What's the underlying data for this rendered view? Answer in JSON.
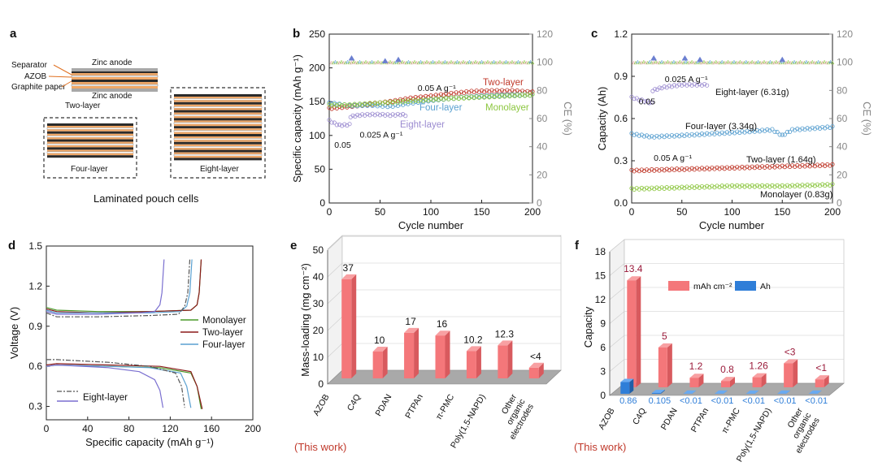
{
  "panels": {
    "a": {
      "letter": "a",
      "callouts": [
        "Separator",
        "AZOB",
        "Graphite paper"
      ],
      "top_label": "Zinc anode",
      "bottom_label": "Zinc anode",
      "two_layer": "Two-layer",
      "four_layer": "Four-layer",
      "eight_layer": "Eight-layer",
      "caption": "Laminated pouch cells"
    }
  },
  "chart_data": [
    {
      "id": "b",
      "letter": "b",
      "type": "line",
      "xlabel": "Cycle number",
      "ylabel": "Specific capacity (mAh g⁻¹)",
      "y2label": "CE (%)",
      "xlim": [
        0,
        200
      ],
      "ylim": [
        0,
        250
      ],
      "y2lim": [
        0,
        120
      ],
      "xticks": [
        0,
        50,
        100,
        150,
        200
      ],
      "yticks": [
        0,
        50,
        100,
        150,
        200,
        250
      ],
      "y2ticks": [
        0,
        20,
        40,
        60,
        80,
        100,
        120
      ],
      "series": [
        {
          "name": "Two-layer",
          "color": "#c0392b",
          "points": [
            [
              0,
              140
            ],
            [
              20,
              143
            ],
            [
              40,
              146
            ],
            [
              60,
              150
            ],
            [
              80,
              155
            ],
            [
              100,
              158
            ],
            [
              120,
              162
            ],
            [
              140,
              165
            ],
            [
              160,
              166
            ],
            [
              180,
              166
            ],
            [
              200,
              164
            ]
          ]
        },
        {
          "name": "Four-layer",
          "color": "#5aa0d0",
          "points": [
            [
              0,
              148
            ],
            [
              10,
              146
            ],
            [
              20,
              144
            ],
            [
              40,
              145
            ],
            [
              60,
              143
            ],
            [
              80,
              148
            ],
            [
              100,
              152
            ],
            [
              120,
              155
            ],
            [
              150,
              158
            ],
            [
              180,
              160
            ],
            [
              200,
              160
            ]
          ]
        },
        {
          "name": "Monolayer",
          "color": "#8cc63f",
          "points": [
            [
              0,
              145
            ],
            [
              20,
              145
            ],
            [
              40,
              147
            ],
            [
              60,
              149
            ],
            [
              80,
              151
            ],
            [
              100,
              153
            ],
            [
              120,
              155
            ],
            [
              150,
              157
            ],
            [
              180,
              159
            ],
            [
              200,
              160
            ]
          ]
        },
        {
          "name": "Eight-layer",
          "color": "#9b8bd0",
          "points": [
            [
              0,
              122
            ],
            [
              5,
              118
            ],
            [
              10,
              115
            ],
            [
              20,
              116
            ],
            [
              21,
              128
            ],
            [
              30,
              130
            ],
            [
              40,
              131
            ],
            [
              50,
              131
            ],
            [
              60,
              130
            ],
            [
              70,
              131
            ],
            [
              75,
              130
            ]
          ]
        }
      ],
      "ce_series": [
        {
          "name": "CE",
          "color": "#6b7fd0",
          "value": 100,
          "spikes": [
            [
              22,
              103
            ],
            [
              55,
              101
            ],
            [
              68,
              102
            ]
          ]
        }
      ],
      "annotations": [
        {
          "text": "0.05 A g⁻¹",
          "x": 87,
          "y": 166
        },
        {
          "text": "0.025 A g⁻¹",
          "x": 30,
          "y": 97
        },
        {
          "text": "0.05",
          "x": 5,
          "y": 82
        }
      ],
      "legend_labels": [
        {
          "text": "Two-layer",
          "color": "#c0392b"
        },
        {
          "text": "Four-layer",
          "color": "#5aa0d0"
        },
        {
          "text": "Monolayer",
          "color": "#8cc63f"
        },
        {
          "text": "Eight-layer",
          "color": "#9b8bd0"
        }
      ]
    },
    {
      "id": "c",
      "letter": "c",
      "type": "line",
      "xlabel": "Cycle number",
      "ylabel": "Capacity (Ah)",
      "y2label": "CE (%)",
      "xlim": [
        0,
        200
      ],
      "ylim": [
        0,
        1.2
      ],
      "y2lim": [
        0,
        120
      ],
      "xticks": [
        0,
        50,
        100,
        150,
        200
      ],
      "yticks": [
        0.0,
        0.3,
        0.6,
        0.9,
        1.2
      ],
      "y2ticks": [
        0,
        20,
        40,
        60,
        80,
        100,
        120
      ],
      "series": [
        {
          "name": "Eight-layer (6.31g)",
          "color": "#9b8bd0",
          "points": [
            [
              0,
              0.75
            ],
            [
              10,
              0.73
            ],
            [
              20,
              0.71
            ],
            [
              21,
              0.8
            ],
            [
              30,
              0.82
            ],
            [
              40,
              0.83
            ],
            [
              50,
              0.84
            ],
            [
              60,
              0.84
            ],
            [
              75,
              0.84
            ]
          ]
        },
        {
          "name": "Four-layer (3.34g)",
          "color": "#5aa0d0",
          "points": [
            [
              0,
              0.49
            ],
            [
              20,
              0.47
            ],
            [
              50,
              0.48
            ],
            [
              100,
              0.5
            ],
            [
              140,
              0.52
            ],
            [
              150,
              0.48
            ],
            [
              160,
              0.52
            ],
            [
              200,
              0.54
            ]
          ]
        },
        {
          "name": "Two-layer (1.64g)",
          "color": "#c0392b",
          "points": [
            [
              0,
              0.23
            ],
            [
              50,
              0.24
            ],
            [
              100,
              0.25
            ],
            [
              150,
              0.26
            ],
            [
              200,
              0.27
            ]
          ]
        },
        {
          "name": "Monolayer (0.83g)",
          "color": "#8cc63f",
          "points": [
            [
              0,
              0.1
            ],
            [
              50,
              0.11
            ],
            [
              100,
              0.12
            ],
            [
              150,
              0.12
            ],
            [
              200,
              0.13
            ]
          ]
        }
      ],
      "ce_series": [
        {
          "name": "CE",
          "color": "#6b7fd0",
          "value": 100,
          "spikes": [
            [
              22,
              103
            ],
            [
              53,
              103
            ],
            [
              68,
              102
            ],
            [
              150,
              102
            ]
          ]
        }
      ],
      "annotations": [
        {
          "text": "0.025 A g⁻¹",
          "x": 33,
          "y": 0.86
        },
        {
          "text": "0.05",
          "x": 7,
          "y": 0.7
        },
        {
          "text": "0.05 A g⁻¹",
          "x": 22,
          "y": 0.3
        }
      ],
      "legend_labels": [
        {
          "text": "Eight-layer (6.31g)",
          "color": "#111111"
        },
        {
          "text": "Four-layer (3.34g)",
          "color": "#111111"
        },
        {
          "text": "Two-layer (1.64g)",
          "color": "#111111"
        },
        {
          "text": "Monolayer (0.83g)",
          "color": "#111111"
        }
      ]
    },
    {
      "id": "d",
      "letter": "d",
      "type": "line",
      "xlabel": "Specific capacity (mAh g⁻¹)",
      "ylabel": "Voltage (V)",
      "xlim": [
        0,
        200
      ],
      "ylim": [
        0.2,
        1.5
      ],
      "xticks": [
        0,
        40,
        80,
        120,
        160,
        200
      ],
      "yticks": [
        0.3,
        0.6,
        0.9,
        1.2,
        1.5
      ],
      "series": [
        {
          "name": "Monolayer",
          "color": "#4a9a2a",
          "charge": [
            [
              0,
              1.04
            ],
            [
              10,
              1.02
            ],
            [
              50,
              1.01
            ],
            [
              100,
              1.01
            ],
            [
              140,
              1.02
            ],
            [
              146,
              1.06
            ],
            [
              148,
              1.15
            ],
            [
              150,
              1.4
            ]
          ],
          "discharge": [
            [
              0,
              0.6
            ],
            [
              10,
              0.61
            ],
            [
              60,
              0.6
            ],
            [
              110,
              0.59
            ],
            [
              140,
              0.55
            ],
            [
              146,
              0.45
            ],
            [
              150,
              0.28
            ]
          ]
        },
        {
          "name": "Two-layer",
          "color": "#8b1a1a",
          "charge": [
            [
              0,
              1.03
            ],
            [
              10,
              1.01
            ],
            [
              50,
              1.0
            ],
            [
              100,
              1.01
            ],
            [
              140,
              1.02
            ],
            [
              146,
              1.06
            ],
            [
              148,
              1.15
            ],
            [
              150,
              1.4
            ]
          ],
          "discharge": [
            [
              0,
              0.61
            ],
            [
              10,
              0.62
            ],
            [
              60,
              0.61
            ],
            [
              110,
              0.6
            ],
            [
              140,
              0.56
            ],
            [
              146,
              0.45
            ],
            [
              151,
              0.28
            ]
          ]
        },
        {
          "name": "Four-layer",
          "color": "#5aa0d0",
          "charge": [
            [
              0,
              1.02
            ],
            [
              10,
              1.0
            ],
            [
              50,
              1.0
            ],
            [
              100,
              1.0
            ],
            [
              130,
              1.01
            ],
            [
              136,
              1.05
            ],
            [
              139,
              1.15
            ],
            [
              141,
              1.4
            ]
          ],
          "discharge": [
            [
              0,
              0.6
            ],
            [
              10,
              0.61
            ],
            [
              60,
              0.6
            ],
            [
              100,
              0.59
            ],
            [
              130,
              0.55
            ],
            [
              136,
              0.45
            ],
            [
              140,
              0.29
            ]
          ]
        },
        {
          "name": "Eight-layer (dash-dot)",
          "color": "#555555",
          "dash": "6 2 2 2",
          "charge": [
            [
              0,
              1.0
            ],
            [
              10,
              0.97
            ],
            [
              50,
              0.97
            ],
            [
              100,
              0.98
            ],
            [
              128,
              0.99
            ],
            [
              134,
              1.05
            ],
            [
              137,
              1.15
            ],
            [
              139,
              1.4
            ]
          ],
          "discharge": [
            [
              0,
              0.65
            ],
            [
              10,
              0.65
            ],
            [
              60,
              0.63
            ],
            [
              100,
              0.6
            ],
            [
              125,
              0.55
            ],
            [
              131,
              0.45
            ],
            [
              134,
              0.29
            ]
          ]
        },
        {
          "name": "Eight-layer",
          "color": "#7a6fd0",
          "charge": [
            [
              0,
              1.01
            ],
            [
              10,
              0.99
            ],
            [
              50,
              0.99
            ],
            [
              90,
              1.0
            ],
            [
              105,
              1.01
            ],
            [
              110,
              1.06
            ],
            [
              112,
              1.15
            ],
            [
              114,
              1.4
            ]
          ],
          "discharge": [
            [
              0,
              0.6
            ],
            [
              10,
              0.61
            ],
            [
              60,
              0.59
            ],
            [
              90,
              0.56
            ],
            [
              105,
              0.5
            ],
            [
              110,
              0.42
            ],
            [
              113,
              0.29
            ]
          ]
        }
      ],
      "legend_labels": [
        {
          "text": "Monolayer",
          "color": "#4a9a2a"
        },
        {
          "text": "Two-layer",
          "color": "#8b1a1a"
        },
        {
          "text": "Four-layer",
          "color": "#5aa0d0"
        }
      ],
      "legend2_label": "Eight-layer"
    },
    {
      "id": "e",
      "letter": "e",
      "type": "bar",
      "ylabel": "Mass-loading (mg cm⁻²)",
      "ylim": [
        0,
        50
      ],
      "yticks": [
        0,
        10,
        20,
        30,
        40,
        50
      ],
      "categories": [
        "AZOB",
        "C4Q",
        "PDAN",
        "PTPAn",
        "π-PMC",
        "Poly(1,5-NAPD)",
        "Other organic electrodes"
      ],
      "values": [
        37,
        10,
        17,
        16,
        10.2,
        12.3,
        4
      ],
      "value_labels": [
        "37",
        "10",
        "17",
        "16",
        "10.2",
        "12.3",
        "<4"
      ],
      "color": "#f4777a",
      "note": "(This work)"
    },
    {
      "id": "f",
      "letter": "f",
      "type": "bar",
      "ylabel": "Capacity",
      "ylim": [
        0,
        18
      ],
      "yticks": [
        0,
        3,
        6,
        9,
        12,
        15,
        18
      ],
      "categories": [
        "AZOB",
        "C4Q",
        "PDAN",
        "PTPAn",
        "π-PMC",
        "Poly(1,5-NAPD)",
        "Other organic electrodes"
      ],
      "series": [
        {
          "name": "mAh cm⁻²",
          "color": "#f4777a",
          "values": [
            13.4,
            5,
            1.2,
            0.8,
            1.26,
            3,
            1
          ],
          "labels": [
            "13.4",
            "5",
            "1.2",
            "0.8",
            "1.26",
            "<3",
            "<1"
          ]
        },
        {
          "name": "Ah",
          "color": "#2f7ed8",
          "values": [
            0.86,
            0.105,
            0.01,
            0.01,
            0.01,
            0.01,
            0.01
          ],
          "labels": [
            "0.86",
            "0.105",
            "<0.01",
            "<0.01",
            "<0.01",
            "<0.01",
            "<0.01"
          ]
        }
      ],
      "note": "(This work)"
    }
  ]
}
